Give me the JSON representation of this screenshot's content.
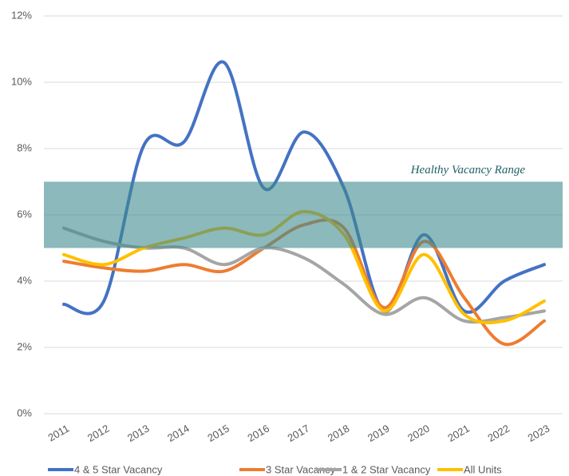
{
  "chart_data": {
    "type": "line",
    "categories": [
      "2011",
      "2012",
      "2013",
      "2014",
      "2015",
      "2016",
      "2017",
      "2018",
      "2019",
      "2020",
      "2021",
      "2022",
      "2023"
    ],
    "series": [
      {
        "name": "4 & 5 Star Vacancy",
        "color": "#4472c4",
        "values": [
          3.3,
          3.4,
          8.1,
          8.2,
          10.6,
          6.8,
          8.5,
          6.8,
          3.1,
          5.4,
          3.1,
          4.0,
          4.5
        ]
      },
      {
        "name": "3 Star Vacancy",
        "color": "#ed7d31",
        "values": [
          4.6,
          4.4,
          4.3,
          4.5,
          4.3,
          5.0,
          5.7,
          5.6,
          3.2,
          5.2,
          3.5,
          2.1,
          2.8
        ]
      },
      {
        "name": "1 & 2 Star Vacancy",
        "color": "#a5a5a5",
        "values": [
          5.6,
          5.2,
          5.0,
          5.0,
          4.5,
          5.0,
          4.7,
          3.9,
          3.0,
          3.5,
          2.8,
          2.9,
          3.1
        ]
      },
      {
        "name": "All Units",
        "color": "#ffc000",
        "values": [
          4.8,
          4.5,
          5.0,
          5.3,
          5.6,
          5.4,
          6.1,
          5.4,
          3.1,
          4.8,
          3.0,
          2.8,
          3.4
        ]
      }
    ],
    "band": {
      "label": "Healthy Vacancy Range",
      "range": [
        5,
        7
      ],
      "color": "#3f8a8e"
    },
    "ylim": [
      0,
      12
    ],
    "yticks": [
      {
        "value": 0,
        "label": "0%"
      },
      {
        "value": 2,
        "label": "2%"
      },
      {
        "value": 4,
        "label": "4%"
      },
      {
        "value": 6,
        "label": "6%"
      },
      {
        "value": 8,
        "label": "8%"
      },
      {
        "value": 10,
        "label": "10%"
      },
      {
        "value": 12,
        "label": "12%"
      }
    ],
    "grid": true,
    "legend": "bottom"
  }
}
